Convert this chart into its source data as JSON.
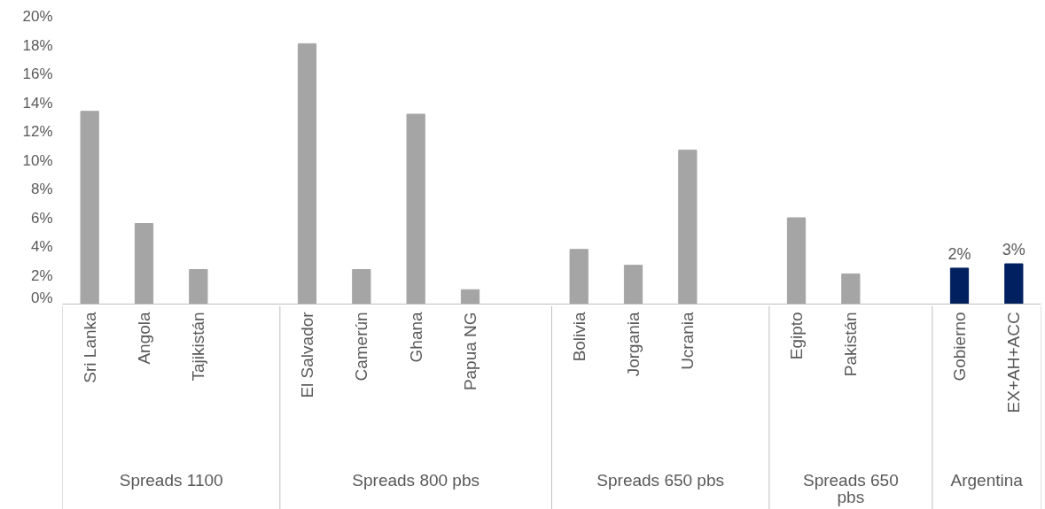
{
  "chart_data": {
    "type": "bar",
    "categories": [
      "Sri Lanka",
      "Angola",
      "Tajikistán",
      null,
      "El Salvador",
      "Camerún",
      "Ghana",
      "Papua NG",
      null,
      "Bolivia",
      "Jorgania",
      "Ucrania",
      null,
      "Egipto",
      "Pakistán",
      null,
      "Gobierno",
      "EX+AH+ACC"
    ],
    "values": [
      13.4,
      5.6,
      2.4,
      null,
      18.1,
      2.4,
      13.2,
      1.0,
      null,
      3.8,
      2.7,
      10.7,
      null,
      6.0,
      2.1,
      null,
      2.5,
      2.8
    ],
    "colors": [
      "#a5a5a5",
      "#a5a5a5",
      "#a5a5a5",
      null,
      "#a5a5a5",
      "#a5a5a5",
      "#a5a5a5",
      "#a5a5a5",
      null,
      "#a5a5a5",
      "#a5a5a5",
      "#a5a5a5",
      null,
      "#a5a5a5",
      "#a5a5a5",
      null,
      "#002060",
      "#002060"
    ],
    "value_labels": [
      null,
      null,
      null,
      null,
      null,
      null,
      null,
      null,
      null,
      null,
      null,
      null,
      null,
      null,
      null,
      null,
      "2%",
      "3%"
    ],
    "annotations": [
      "Spreads 1100",
      "Spreads 800 pbs",
      "Spreads 650 pbs",
      "Spreads 650\npbs",
      "Argentina"
    ],
    "ylim": [
      0,
      20
    ],
    "yticks": [
      {
        "value": 0,
        "label": "0%"
      },
      {
        "value": 2,
        "label": "2%"
      },
      {
        "value": 4,
        "label": "4%"
      },
      {
        "value": 6,
        "label": "6%"
      },
      {
        "value": 8,
        "label": "8%"
      },
      {
        "value": 10,
        "label": "10%"
      },
      {
        "value": 12,
        "label": "12%"
      },
      {
        "value": 14,
        "label": "14%"
      },
      {
        "value": 16,
        "label": "16%"
      },
      {
        "value": 18,
        "label": "18%"
      },
      {
        "value": 20,
        "label": "20%"
      }
    ],
    "grid": false
  }
}
